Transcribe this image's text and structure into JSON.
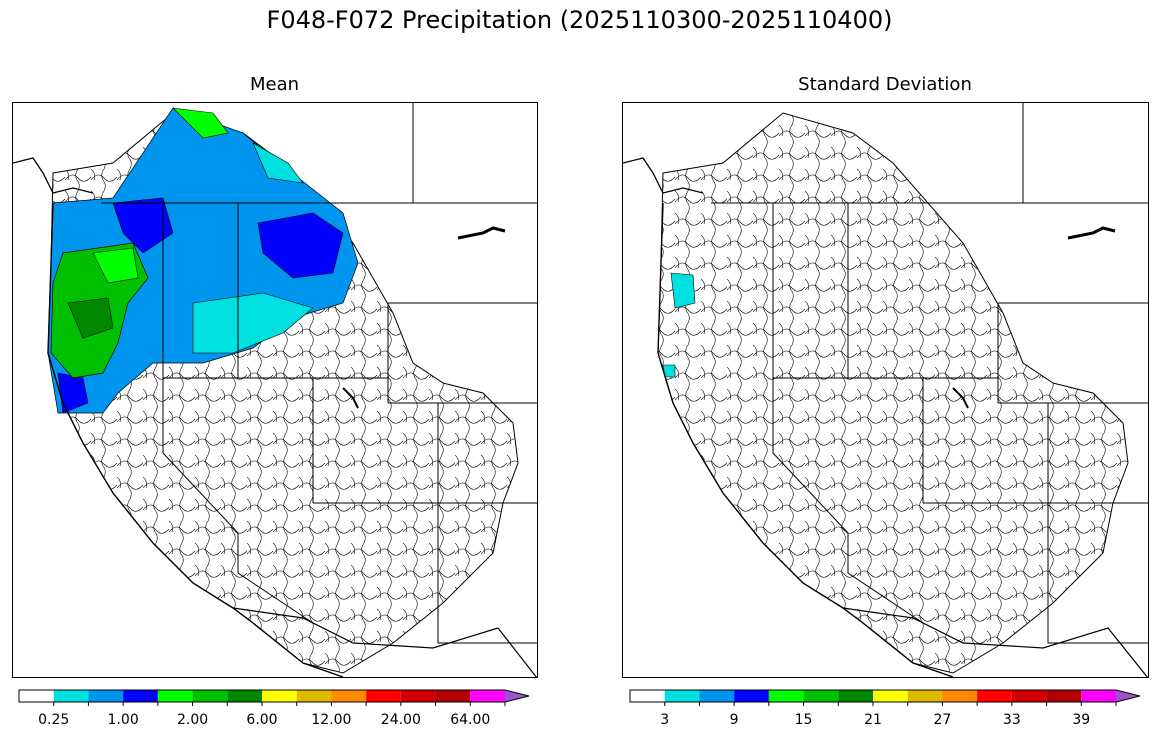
{
  "figure": {
    "title": "F048-F072 Precipitation (2025110300-2025110400)"
  },
  "panels": {
    "mean": {
      "title": "Mean",
      "colorbar": {
        "colors": [
          "#ffffff",
          "#00e0e0",
          "#0096f0",
          "#0000ff",
          "#00ff00",
          "#00c000",
          "#008800",
          "#ffff00",
          "#e0b800",
          "#ff8800",
          "#ff0000",
          "#d00000",
          "#b40000",
          "#ff00ff",
          "#9955cc"
        ],
        "tick_labels": [
          "0.25",
          "1.00",
          "2.00",
          "6.00",
          "12.00",
          "24.00",
          "64.00"
        ],
        "extend": "max"
      }
    },
    "sd": {
      "title": "Standard Deviation",
      "colorbar": {
        "colors": [
          "#ffffff",
          "#00e0e0",
          "#0096f0",
          "#0000ff",
          "#00ff00",
          "#00c000",
          "#008800",
          "#ffff00",
          "#e0b800",
          "#ff8800",
          "#ff0000",
          "#d00000",
          "#b40000",
          "#ff00ff",
          "#9955cc"
        ],
        "tick_labels": [
          "3",
          "9",
          "15",
          "21",
          "27",
          "33",
          "39"
        ],
        "extend": "max"
      }
    }
  }
}
